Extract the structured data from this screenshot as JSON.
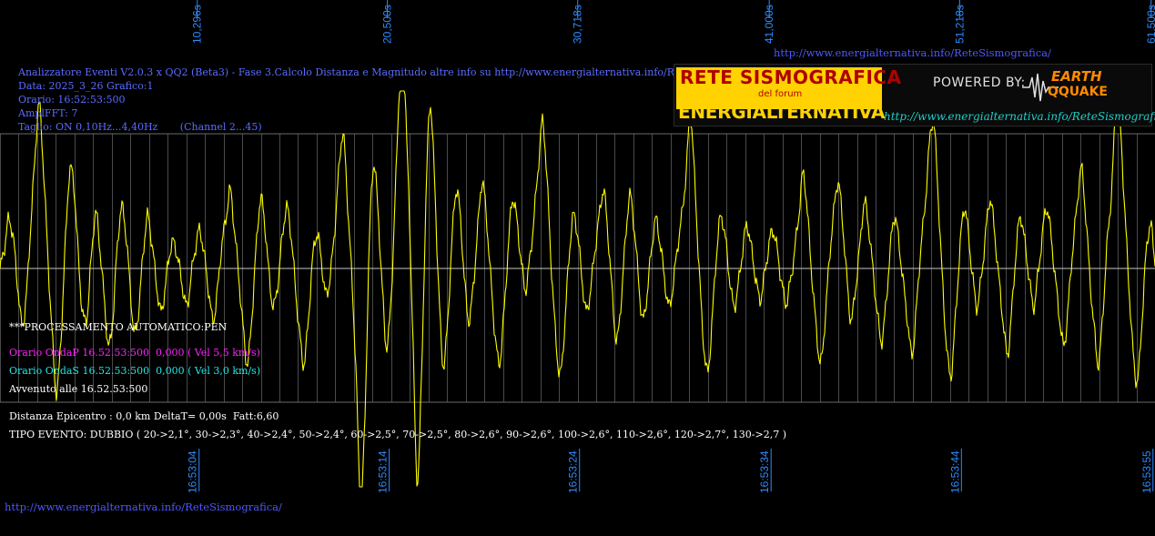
{
  "header": {
    "title": "Analizzatore Eventi V2.0.3 x QQ2 (Beta3) - Fase 3.Calcolo Distanza e Magnitudo altre info su http://www.energialternativa.info/ReteSism",
    "data": "Data: 2025_3_26 Grafico:1",
    "orario": "Orario: 16:52:53:500",
    "ampl": "AmplFFT: 7",
    "taglio": "Taglio: ON 0,10Hz...4,40Hz       (Channel 2...45)"
  },
  "processing": {
    "status": "***PROCESSAMENTO AUTOMATICO:PEN",
    "onda_p": "Orario OndaP 16.52.53:500  0,000 ( Vel 5,5 km/s)",
    "onda_s": "Orario OndaS 16.52.53:500  0,000 ( Vel 3,0 km/s)",
    "avvenuto": "Avvenuto alle 16.52.53:500",
    "distanza": "Distanza Epicentro : 0,0 km DeltaT= 0,00s  Fatt:6,60",
    "tipo_evento": "TIPO EVENTO: DUBBIO ( 20->2,1°, 30->2,3°, 40->2,4°, 50->2,4°, 60->2,5°, 70->2,5°, 80->2,6°, 90->2,6°, 100->2,6°, 110->2,6°, 120->2,7°, 130->2,7 )"
  },
  "urls": {
    "top": "http://www.energialternativa.info/ReteSismografica/",
    "bottom": "http://www.energialternativa.info/ReteSismografica/"
  },
  "logo": {
    "line1": "RETE SISMOGRAFICA",
    "line2": "del forum",
    "line3": "ENERGIALTERNATIVA",
    "powered": "POWERED BY:",
    "brand1": "EARTH",
    "brand2": "QQUAKE",
    "url": "http://www.energialternativa.info/ReteSismografica"
  },
  "colors": {
    "trace": "#ffff00",
    "grid": "#4a4a4a",
    "axis_label": "#2f8cff",
    "center_line": "#c8c8c8"
  },
  "chart_data": {
    "type": "line",
    "title": "",
    "x_seconds_ticks": [
      "10,296s",
      "20,500s",
      "30,718s",
      "41,000s",
      "51,218s",
      "61,500s"
    ],
    "x_seconds_values": [
      10.296,
      20.5,
      30.718,
      41.0,
      51.218,
      61.5
    ],
    "x_time_ticks": [
      "16:53:04",
      "16:53:14",
      "16:53:24",
      "16:53:34",
      "16:53:44",
      "16:53:55"
    ],
    "xlim": [
      0,
      62.0
    ],
    "ylim": [
      -1.0,
      1.0
    ],
    "grid": "vertical lines every ~1 s",
    "series": [
      {
        "values": [
          0.0,
          0.12,
          0.28,
          0.18,
          -0.08,
          -0.32,
          -0.18,
          0.22,
          0.62,
          0.95,
          0.58,
          0.08,
          -0.38,
          -0.72,
          -0.42,
          0.12,
          0.55,
          0.48,
          0.08,
          -0.25,
          -0.28,
          0.05,
          0.32,
          0.12,
          -0.18,
          -0.45,
          -0.28,
          0.12,
          0.35,
          0.2,
          -0.12,
          -0.38,
          -0.22,
          0.1,
          0.3,
          0.14,
          -0.08,
          -0.25,
          -0.12,
          0.08,
          0.15,
          0.05,
          -0.1,
          -0.22,
          -0.05,
          0.12,
          0.22,
          0.08,
          -0.12,
          -0.3,
          -0.15,
          0.12,
          0.28,
          0.45,
          0.22,
          -0.05,
          -0.35,
          -0.55,
          -0.28,
          0.12,
          0.4,
          0.25,
          -0.05,
          -0.22,
          -0.08,
          0.18,
          0.35,
          0.2,
          -0.1,
          -0.38,
          -0.55,
          -0.3,
          0.05,
          0.2,
          0.05,
          -0.15,
          -0.05,
          0.2,
          0.55,
          0.78,
          0.4,
          -0.05,
          -0.6,
          -1.35,
          -0.9,
          0.1,
          0.6,
          0.35,
          -0.1,
          -0.45,
          -0.2,
          0.4,
          1.05,
          1.18,
          0.5,
          -0.3,
          -1.22,
          -0.7,
          0.3,
          0.95,
          0.55,
          -0.1,
          -0.55,
          -0.35,
          0.12,
          0.45,
          0.3,
          -0.08,
          -0.3,
          -0.1,
          0.22,
          0.5,
          0.3,
          -0.05,
          -0.38,
          -0.55,
          -0.28,
          0.1,
          0.4,
          0.28,
          0.05,
          -0.12,
          0.05,
          0.3,
          0.6,
          0.85,
          0.5,
          0.0,
          -0.4,
          -0.62,
          -0.35,
          0.05,
          0.3,
          0.2,
          -0.05,
          -0.25,
          -0.12,
          0.1,
          0.3,
          0.45,
          0.2,
          -0.15,
          -0.42,
          -0.2,
          0.15,
          0.42,
          0.25,
          -0.05,
          -0.3,
          -0.15,
          0.1,
          0.28,
          0.15,
          -0.05,
          -0.22,
          -0.1,
          0.12,
          0.3,
          0.55,
          0.88,
          0.5,
          0.0,
          -0.42,
          -0.6,
          -0.3,
          0.08,
          0.3,
          0.18,
          -0.05,
          -0.22,
          -0.1,
          0.1,
          0.25,
          0.12,
          -0.05,
          -0.18,
          -0.05,
          0.12,
          0.22,
          0.1,
          -0.08,
          -0.2,
          -0.08,
          0.1,
          0.32,
          0.55,
          0.3,
          -0.05,
          -0.35,
          -0.55,
          -0.3,
          0.05,
          0.32,
          0.5,
          0.28,
          -0.05,
          -0.3,
          -0.12,
          0.12,
          0.38,
          0.25,
          0.0,
          -0.25,
          -0.42,
          -0.22,
          0.1,
          0.3,
          0.15,
          -0.08,
          -0.3,
          -0.5,
          -0.25,
          0.1,
          0.35,
          0.7,
          0.85,
          0.45,
          -0.05,
          -0.45,
          -0.62,
          -0.3,
          0.08,
          0.35,
          0.2,
          -0.05,
          -0.22,
          -0.05,
          0.2,
          0.4,
          0.22,
          -0.05,
          -0.3,
          -0.5,
          -0.25,
          0.1,
          0.3,
          0.15,
          -0.05,
          -0.22,
          -0.05,
          0.18,
          0.35,
          0.2,
          -0.05,
          -0.28,
          -0.45,
          -0.22,
          0.1,
          0.35,
          0.58,
          0.32,
          -0.05,
          -0.35,
          -0.55,
          -0.25,
          0.15,
          0.45,
          0.92,
          0.82,
          0.35,
          -0.1,
          -0.5,
          -0.65,
          -0.3,
          0.1,
          0.25,
          0.05
        ]
      }
    ]
  }
}
